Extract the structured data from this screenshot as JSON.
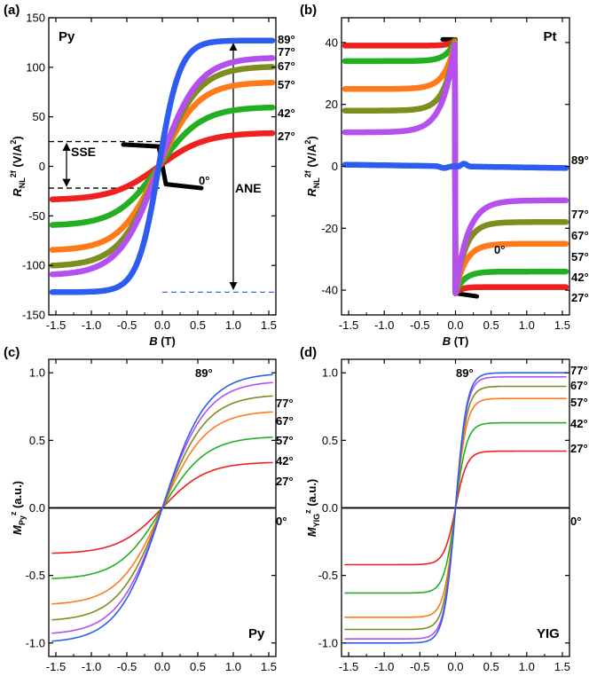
{
  "colors": {
    "0": "#000000",
    "27": "#ee2020",
    "42": "#22b022",
    "57": "#ff7a1a",
    "67": "#7f8c1e",
    "77": "#b44ff0",
    "89": "#2f5cf0"
  },
  "chart_data": [
    {
      "panel": "(a)",
      "type": "line",
      "sample_label": "Py",
      "xlabel": [
        "B",
        " (T)"
      ],
      "ylabel": {
        "main": "R",
        "sub": "NL",
        "sup": "2f",
        "unit": " (V/A",
        "unit_sup": "2",
        "unit_close": ")"
      },
      "xlim": [
        -1.6,
        1.6
      ],
      "ylim": [
        -150,
        150
      ],
      "xticks": [
        "-1.5",
        "-1.0",
        "-0.5",
        "0.0",
        "0.5",
        "1.0",
        "1.5"
      ],
      "yticks": [
        "150",
        "100",
        "50",
        "0",
        "-50",
        "-100",
        "-150"
      ],
      "ytick_values": [
        150,
        100,
        50,
        0,
        -50,
        -100,
        -150
      ],
      "annotations": [
        "SSE",
        "ANE"
      ],
      "series": [
        {
          "name": "89°",
          "angle": 89,
          "shape": "tanh",
          "sat": 127,
          "width": 0.3,
          "offset": -0.05
        },
        {
          "name": "77°",
          "angle": 77,
          "shape": "tanh",
          "sat": 110,
          "width": 0.55,
          "offset": -0.05
        },
        {
          "name": "67°",
          "angle": 67,
          "shape": "tanh",
          "sat": 101,
          "width": 0.55,
          "offset": -0.05
        },
        {
          "name": "57°",
          "angle": 57,
          "shape": "tanh",
          "sat": 85,
          "width": 0.55,
          "offset": -0.05
        },
        {
          "name": "42°",
          "angle": 42,
          "shape": "tanh",
          "sat": 60,
          "width": 0.6,
          "offset": -0.05
        },
        {
          "name": "27°",
          "angle": 27,
          "shape": "tanh",
          "sat": 34,
          "width": 0.65,
          "offset": -0.05
        },
        {
          "name": "0°",
          "angle": 0,
          "shape": "tanh",
          "sat": 22,
          "width": 0.025,
          "offset": 0
        }
      ]
    },
    {
      "panel": "(b)",
      "type": "line",
      "sample_label": "Pt",
      "xlabel": [
        "B",
        " (T)"
      ],
      "ylabel": {
        "main": "R",
        "sub": "NL",
        "sup": "2f",
        "unit": " (V/A",
        "unit_sup": "2",
        "unit_close": ")"
      },
      "xlim": [
        -1.6,
        1.6
      ],
      "ylim": [
        -48,
        48
      ],
      "xticks": [
        "-1.5",
        "-1.0",
        "-0.5",
        "0.0",
        "0.5",
        "1.0",
        "1.5"
      ],
      "yticks": [
        "40",
        "20",
        "0",
        "-20",
        "-40"
      ],
      "ytick_values": [
        40,
        20,
        0,
        -20,
        -40
      ],
      "series": [
        {
          "name": "89°",
          "angle": 89,
          "shape": "pt89"
        },
        {
          "name": "77°",
          "angle": 77,
          "shape": "step",
          "sat": 11,
          "peak": 41,
          "k": 0.17
        },
        {
          "name": "67°",
          "angle": 67,
          "shape": "step",
          "sat": 18,
          "peak": 41,
          "k": 0.14
        },
        {
          "name": "57°",
          "angle": 57,
          "shape": "step",
          "sat": 25,
          "peak": 41,
          "k": 0.14
        },
        {
          "name": "42°",
          "angle": 42,
          "shape": "step",
          "sat": 34,
          "peak": 41,
          "k": 0.12
        },
        {
          "name": "27°",
          "angle": 27,
          "shape": "step",
          "sat": 39,
          "peak": 41,
          "k": 0.08
        },
        {
          "name": "0°",
          "angle": 0,
          "shape": "zero",
          "sat": 41
        }
      ]
    },
    {
      "panel": "(c)",
      "type": "line",
      "sample_label": "Py",
      "xlabel": [
        "B",
        " (T)"
      ],
      "ylabel": {
        "main": "M",
        "sub": "Py",
        "sup": "z",
        "unit": " (a.u.)",
        "unit_sup": "",
        "unit_close": ""
      },
      "xlim": [
        -1.6,
        1.6
      ],
      "ylim": [
        -1.1,
        1.1
      ],
      "xticks": [
        "-1.5",
        "-1.0",
        "-0.5",
        "0.0",
        "0.5",
        "1.0",
        "1.5"
      ],
      "yticks": [
        "1.0",
        "0.5",
        "0.0",
        "-0.5",
        "-1.0"
      ],
      "ytick_values": [
        1.0,
        0.5,
        0.0,
        -0.5,
        -1.0
      ],
      "series": [
        {
          "name": "89°",
          "angle": 89,
          "shape": "sat",
          "sat": 1.0,
          "width": 0.62
        },
        {
          "name": "77°",
          "angle": 77,
          "shape": "sat",
          "sat": 0.94,
          "width": 0.62
        },
        {
          "name": "67°",
          "angle": 67,
          "shape": "sat",
          "sat": 0.84,
          "width": 0.62
        },
        {
          "name": "57°",
          "angle": 57,
          "shape": "sat",
          "sat": 0.72,
          "width": 0.62
        },
        {
          "name": "42°",
          "angle": 42,
          "shape": "sat",
          "sat": 0.53,
          "width": 0.62
        },
        {
          "name": "27°",
          "angle": 27,
          "shape": "sat",
          "sat": 0.34,
          "width": 0.62
        },
        {
          "name": "0°",
          "angle": 0,
          "shape": "flat"
        }
      ]
    },
    {
      "panel": "(d)",
      "type": "line",
      "sample_label": "YIG",
      "xlabel": [
        "B",
        " (T)"
      ],
      "ylabel": {
        "main": "M",
        "sub": "YIG",
        "sup": "z",
        "unit": " (a.u.)",
        "unit_sup": "",
        "unit_close": ""
      },
      "xlim": [
        -1.6,
        1.6
      ],
      "ylim": [
        -1.1,
        1.1
      ],
      "xticks": [
        "-1.5",
        "-1.0",
        "-0.5",
        "0.0",
        "0.5",
        "1.0",
        "1.5"
      ],
      "yticks": [
        "1.0",
        "0.5",
        "0.0",
        "-0.5",
        "-1.0"
      ],
      "ytick_values": [
        1.0,
        0.5,
        0.0,
        -0.5,
        -1.0
      ],
      "series": [
        {
          "name": "89°",
          "angle": 89,
          "shape": "sat",
          "sat": 1.0,
          "width": 0.16
        },
        {
          "name": "77°",
          "angle": 77,
          "shape": "sat",
          "sat": 0.97,
          "width": 0.16
        },
        {
          "name": "67°",
          "angle": 67,
          "shape": "sat",
          "sat": 0.9,
          "width": 0.16
        },
        {
          "name": "57°",
          "angle": 57,
          "shape": "sat",
          "sat": 0.81,
          "width": 0.16
        },
        {
          "name": "42°",
          "angle": 42,
          "shape": "sat",
          "sat": 0.63,
          "width": 0.16
        },
        {
          "name": "27°",
          "angle": 27,
          "shape": "sat",
          "sat": 0.42,
          "width": 0.16
        },
        {
          "name": "0°",
          "angle": 0,
          "shape": "flat"
        }
      ]
    }
  ]
}
